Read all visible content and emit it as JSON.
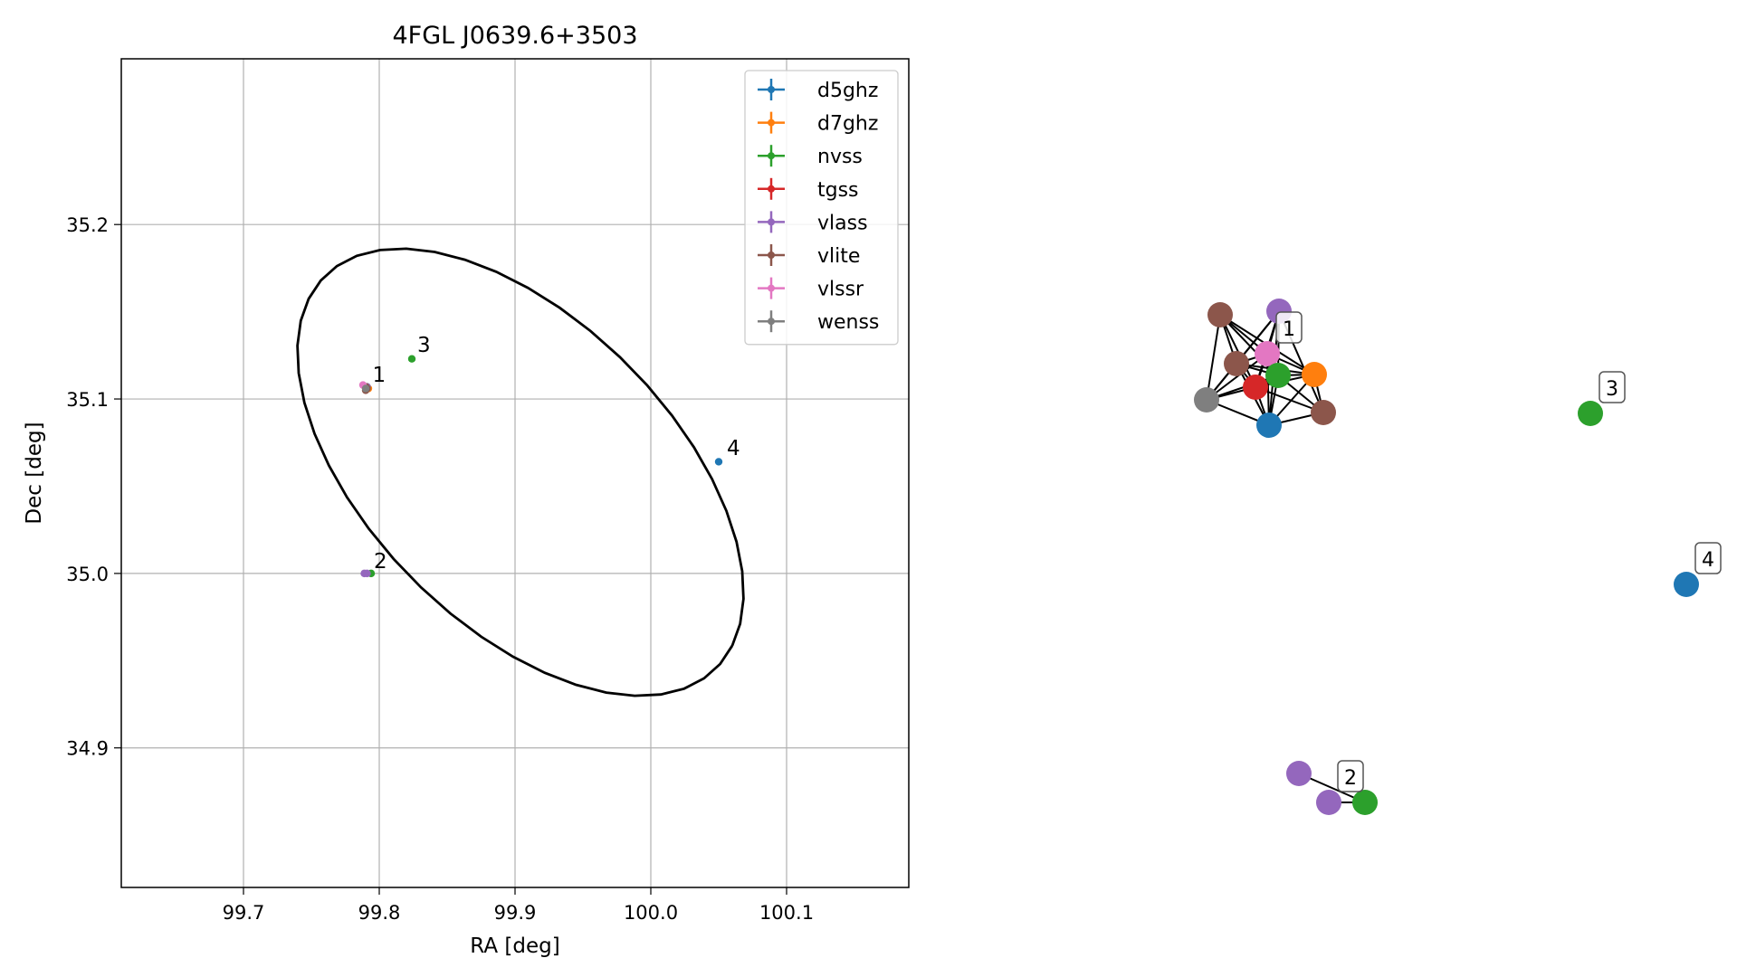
{
  "chart_data": [
    {
      "type": "scatter",
      "title": "4FGL J0639.6+3503",
      "xlabel": "RA [deg]",
      "ylabel": "Dec [deg]",
      "xlim": [
        99.61,
        100.19
      ],
      "ylim": [
        34.82,
        35.295
      ],
      "xticks": [
        99.7,
        99.8,
        99.9,
        100.0,
        100.1
      ],
      "xtick_labels": [
        "99.7",
        "99.8",
        "99.9",
        "100.0",
        "100.1"
      ],
      "yticks": [
        34.9,
        35.0,
        35.1,
        35.2
      ],
      "ytick_labels": [
        "34.9",
        "35.0",
        "35.1",
        "35.2"
      ],
      "grid": true,
      "legend_position": "top-right",
      "ellipse": {
        "center_ra": 99.904,
        "center_dec": 35.058,
        "semi_major": 0.185,
        "semi_minor": 0.096,
        "angle_deg": -32.5
      },
      "series": [
        {
          "name": "d5ghz",
          "color": "#1f77b4",
          "points": [
            [
              100.05,
              35.064
            ],
            [
              99.791,
              35.106
            ]
          ]
        },
        {
          "name": "d7ghz",
          "color": "#ff7f0e",
          "points": [
            [
              99.792,
              35.106
            ]
          ]
        },
        {
          "name": "nvss",
          "color": "#2ca02c",
          "points": [
            [
              99.824,
              35.123
            ],
            [
              99.791,
              35.107
            ],
            [
              99.794,
              35.0
            ]
          ]
        },
        {
          "name": "tgss",
          "color": "#d62728",
          "points": [
            [
              99.79,
              35.106
            ]
          ]
        },
        {
          "name": "vlass",
          "color": "#9467bd",
          "points": [
            [
              99.791,
              35.107
            ],
            [
              99.789,
              35.0
            ],
            [
              99.791,
              35.0
            ]
          ]
        },
        {
          "name": "vlite",
          "color": "#8c564b",
          "points": [
            [
              99.79,
              35.107
            ],
            [
              99.791,
              35.106
            ],
            [
              99.79,
              35.105
            ]
          ]
        },
        {
          "name": "vlssr",
          "color": "#e377c2",
          "points": [
            [
              99.788,
              35.108
            ]
          ]
        },
        {
          "name": "wenss",
          "color": "#7f7f7f",
          "points": [
            [
              99.79,
              35.106
            ]
          ]
        }
      ],
      "annotations": [
        {
          "text": "1",
          "ra": 99.795,
          "dec": 35.11
        },
        {
          "text": "2",
          "ra": 99.796,
          "dec": 35.003
        },
        {
          "text": "3",
          "ra": 99.828,
          "dec": 35.127
        },
        {
          "text": "4",
          "ra": 100.056,
          "dec": 35.068
        }
      ]
    },
    {
      "type": "network",
      "nodes": [
        {
          "id": "a1",
          "survey": "vlite",
          "color": "#8c564b"
        },
        {
          "id": "a2",
          "survey": "vlass",
          "color": "#9467bd"
        },
        {
          "id": "a3",
          "survey": "vlite",
          "color": "#8c564b"
        },
        {
          "id": "a4",
          "survey": "vlssr",
          "color": "#e377c2"
        },
        {
          "id": "a5",
          "survey": "d7ghz",
          "color": "#ff7f0e"
        },
        {
          "id": "a6",
          "survey": "nvss",
          "color": "#2ca02c"
        },
        {
          "id": "a7",
          "survey": "tgss",
          "color": "#d62728"
        },
        {
          "id": "a8",
          "survey": "wenss",
          "color": "#7f7f7f"
        },
        {
          "id": "a9",
          "survey": "d5ghz",
          "color": "#1f77b4"
        },
        {
          "id": "a10",
          "survey": "vlite",
          "color": "#8c564b"
        },
        {
          "id": "b1",
          "survey": "vlass",
          "color": "#9467bd"
        },
        {
          "id": "b2",
          "survey": "vlass",
          "color": "#9467bd"
        },
        {
          "id": "b3",
          "survey": "nvss",
          "color": "#2ca02c"
        },
        {
          "id": "c1",
          "survey": "nvss",
          "color": "#2ca02c"
        },
        {
          "id": "d1",
          "survey": "d5ghz",
          "color": "#1f77b4"
        }
      ],
      "edges": [
        [
          "a1",
          "a3"
        ],
        [
          "a1",
          "a4"
        ],
        [
          "a1",
          "a6"
        ],
        [
          "a1",
          "a7"
        ],
        [
          "a1",
          "a8"
        ],
        [
          "a1",
          "a5"
        ],
        [
          "a2",
          "a3"
        ],
        [
          "a2",
          "a4"
        ],
        [
          "a2",
          "a6"
        ],
        [
          "a2",
          "a7"
        ],
        [
          "a2",
          "a8"
        ],
        [
          "a2",
          "a9"
        ],
        [
          "a2",
          "a10"
        ],
        [
          "a3",
          "a4"
        ],
        [
          "a3",
          "a5"
        ],
        [
          "a3",
          "a6"
        ],
        [
          "a3",
          "a7"
        ],
        [
          "a3",
          "a8"
        ],
        [
          "a3",
          "a9"
        ],
        [
          "a4",
          "a5"
        ],
        [
          "a4",
          "a6"
        ],
        [
          "a4",
          "a7"
        ],
        [
          "a4",
          "a8"
        ],
        [
          "a4",
          "a9"
        ],
        [
          "a5",
          "a6"
        ],
        [
          "a5",
          "a7"
        ],
        [
          "a5",
          "a9"
        ],
        [
          "a5",
          "a10"
        ],
        [
          "a6",
          "a7"
        ],
        [
          "a6",
          "a8"
        ],
        [
          "a6",
          "a9"
        ],
        [
          "a6",
          "a10"
        ],
        [
          "a7",
          "a8"
        ],
        [
          "a7",
          "a9"
        ],
        [
          "a7",
          "a10"
        ],
        [
          "a8",
          "a9"
        ],
        [
          "a9",
          "a10"
        ],
        [
          "b1",
          "b3"
        ],
        [
          "b2",
          "b3"
        ]
      ],
      "labels": [
        {
          "text": "1",
          "node": "a4"
        },
        {
          "text": "2",
          "node": "b2"
        },
        {
          "text": "3",
          "node": "c1"
        },
        {
          "text": "4",
          "node": "d1"
        }
      ]
    }
  ]
}
